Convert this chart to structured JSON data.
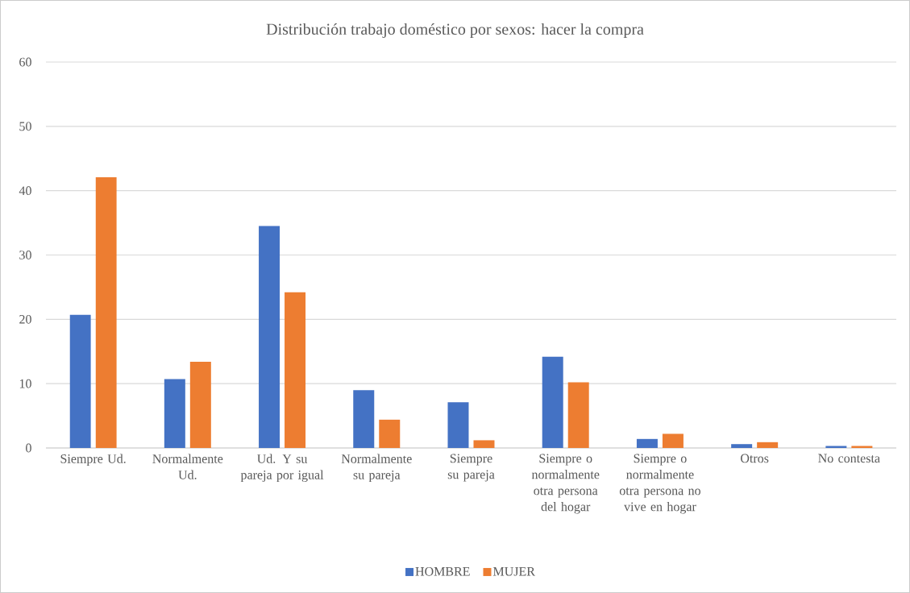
{
  "chart_data": {
    "type": "bar",
    "title": "Distribución trabajo doméstico por sexos: hacer la compra",
    "categories": [
      "Siempre Ud.",
      "Normalmente Ud.",
      "Ud. Y su pareja por igual",
      "Normalmente su pareja",
      "Siempre su pareja",
      "Siempre o normalmente otra persona del hogar",
      "Siempre o normalmente otra persona no vive en hogar",
      "Otros",
      "No contesta"
    ],
    "series": [
      {
        "name": "HOMBRE",
        "color": "#4472c4",
        "values": [
          20.7,
          10.7,
          34.5,
          9.0,
          7.1,
          14.2,
          1.4,
          0.6,
          0.3
        ]
      },
      {
        "name": "MUJER",
        "color": "#ed7d31",
        "values": [
          42.1,
          13.4,
          24.2,
          4.4,
          1.2,
          10.2,
          2.2,
          0.9,
          0.3
        ]
      }
    ],
    "ylim": [
      0,
      60
    ],
    "yticks": [
      0,
      10,
      20,
      30,
      40,
      50,
      60
    ],
    "grid": "y",
    "legend": "bottom"
  }
}
